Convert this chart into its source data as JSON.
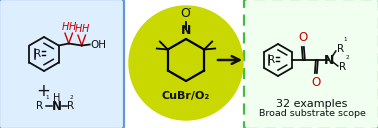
{
  "bg_color": "#ffffff",
  "left_box_edgecolor": "#6699cc",
  "left_box_facecolor": "#ddeeff",
  "right_box_edgecolor": "#44bb44",
  "right_box_facecolor": "#f0fff0",
  "circle_color": "#c8d800",
  "red": "#cc0000",
  "black": "#111111",
  "catalyst": "CuBr/O₂",
  "examples": "32 examples",
  "scope": "Broad substrate scope"
}
